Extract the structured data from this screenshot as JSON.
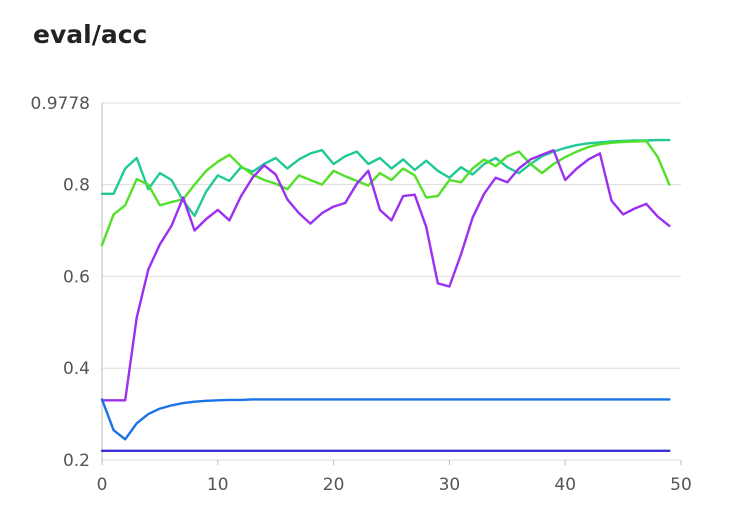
{
  "chart_data": {
    "type": "line",
    "title": "eval/acc",
    "xlabel": "",
    "ylabel": "",
    "xlim": [
      0,
      50
    ],
    "ylim": [
      0.2,
      0.9778
    ],
    "x_ticks": [
      0,
      10,
      20,
      30,
      40,
      50
    ],
    "x_tick_labels": [
      "0",
      "10",
      "20",
      "30",
      "40",
      "50"
    ],
    "y_ticks": [
      0.2,
      0.4,
      0.6,
      0.8,
      0.9778
    ],
    "y_tick_labels": [
      "0.2",
      "0.4",
      "0.6",
      "0.8",
      "0.9778"
    ],
    "grid": true,
    "legend": "none",
    "x": [
      0,
      1,
      2,
      3,
      4,
      5,
      6,
      7,
      8,
      9,
      10,
      11,
      12,
      13,
      14,
      15,
      16,
      17,
      18,
      19,
      20,
      21,
      22,
      23,
      24,
      25,
      26,
      27,
      28,
      29,
      30,
      31,
      32,
      33,
      34,
      35,
      36,
      37,
      38,
      39,
      40,
      41,
      42,
      43,
      44,
      45,
      46,
      47,
      48,
      49
    ],
    "series": [
      {
        "color": "#20c997",
        "values": [
          0.78,
          0.78,
          0.835,
          0.858,
          0.79,
          0.825,
          0.81,
          0.765,
          0.732,
          0.785,
          0.82,
          0.808,
          0.838,
          0.828,
          0.845,
          0.858,
          0.835,
          0.855,
          0.868,
          0.875,
          0.845,
          0.862,
          0.872,
          0.845,
          0.858,
          0.835,
          0.855,
          0.832,
          0.852,
          0.83,
          0.815,
          0.838,
          0.822,
          0.845,
          0.858,
          0.838,
          0.825,
          0.845,
          0.862,
          0.872,
          0.88,
          0.886,
          0.89,
          0.892,
          0.894,
          0.895,
          0.896,
          0.896,
          0.897,
          0.897
        ]
      },
      {
        "color": "#52e02b",
        "values": [
          0.668,
          0.735,
          0.755,
          0.812,
          0.8,
          0.755,
          0.762,
          0.768,
          0.8,
          0.83,
          0.85,
          0.865,
          0.84,
          0.822,
          0.81,
          0.802,
          0.79,
          0.82,
          0.81,
          0.8,
          0.83,
          0.818,
          0.808,
          0.798,
          0.825,
          0.81,
          0.835,
          0.82,
          0.772,
          0.775,
          0.81,
          0.805,
          0.835,
          0.855,
          0.84,
          0.862,
          0.872,
          0.845,
          0.825,
          0.845,
          0.86,
          0.872,
          0.882,
          0.888,
          0.891,
          0.893,
          0.894,
          0.895,
          0.86,
          0.8
        ]
      },
      {
        "color": "#9b30f0",
        "values": [
          0.33,
          0.33,
          0.33,
          0.51,
          0.615,
          0.67,
          0.71,
          0.772,
          0.7,
          0.725,
          0.745,
          0.722,
          0.775,
          0.815,
          0.842,
          0.822,
          0.768,
          0.738,
          0.715,
          0.738,
          0.752,
          0.76,
          0.802,
          0.83,
          0.745,
          0.722,
          0.775,
          0.778,
          0.708,
          0.585,
          0.578,
          0.648,
          0.728,
          0.78,
          0.815,
          0.805,
          0.835,
          0.855,
          0.865,
          0.875,
          0.81,
          0.835,
          0.855,
          0.868,
          0.765,
          0.735,
          0.748,
          0.758,
          0.73,
          0.71
        ]
      },
      {
        "color": "#1a73e8",
        "values": [
          0.332,
          0.265,
          0.245,
          0.28,
          0.3,
          0.312,
          0.319,
          0.324,
          0.327,
          0.329,
          0.33,
          0.331,
          0.331,
          0.332,
          0.332,
          0.332,
          0.332,
          0.332,
          0.332,
          0.332,
          0.332,
          0.332,
          0.332,
          0.332,
          0.332,
          0.332,
          0.332,
          0.332,
          0.332,
          0.332,
          0.332,
          0.332,
          0.332,
          0.332,
          0.332,
          0.332,
          0.332,
          0.332,
          0.332,
          0.332,
          0.332,
          0.332,
          0.332,
          0.332,
          0.332,
          0.332,
          0.332,
          0.332,
          0.332,
          0.332
        ]
      },
      {
        "color": "#3b30d8",
        "values": [
          0.22,
          0.22,
          0.22,
          0.22,
          0.22,
          0.22,
          0.22,
          0.22,
          0.22,
          0.22,
          0.22,
          0.22,
          0.22,
          0.22,
          0.22,
          0.22,
          0.22,
          0.22,
          0.22,
          0.22,
          0.22,
          0.22,
          0.22,
          0.22,
          0.22,
          0.22,
          0.22,
          0.22,
          0.22,
          0.22,
          0.22,
          0.22,
          0.22,
          0.22,
          0.22,
          0.22,
          0.22,
          0.22,
          0.22,
          0.22,
          0.22,
          0.22,
          0.22,
          0.22,
          0.22,
          0.22,
          0.22,
          0.22,
          0.22,
          0.22
        ]
      }
    ]
  }
}
